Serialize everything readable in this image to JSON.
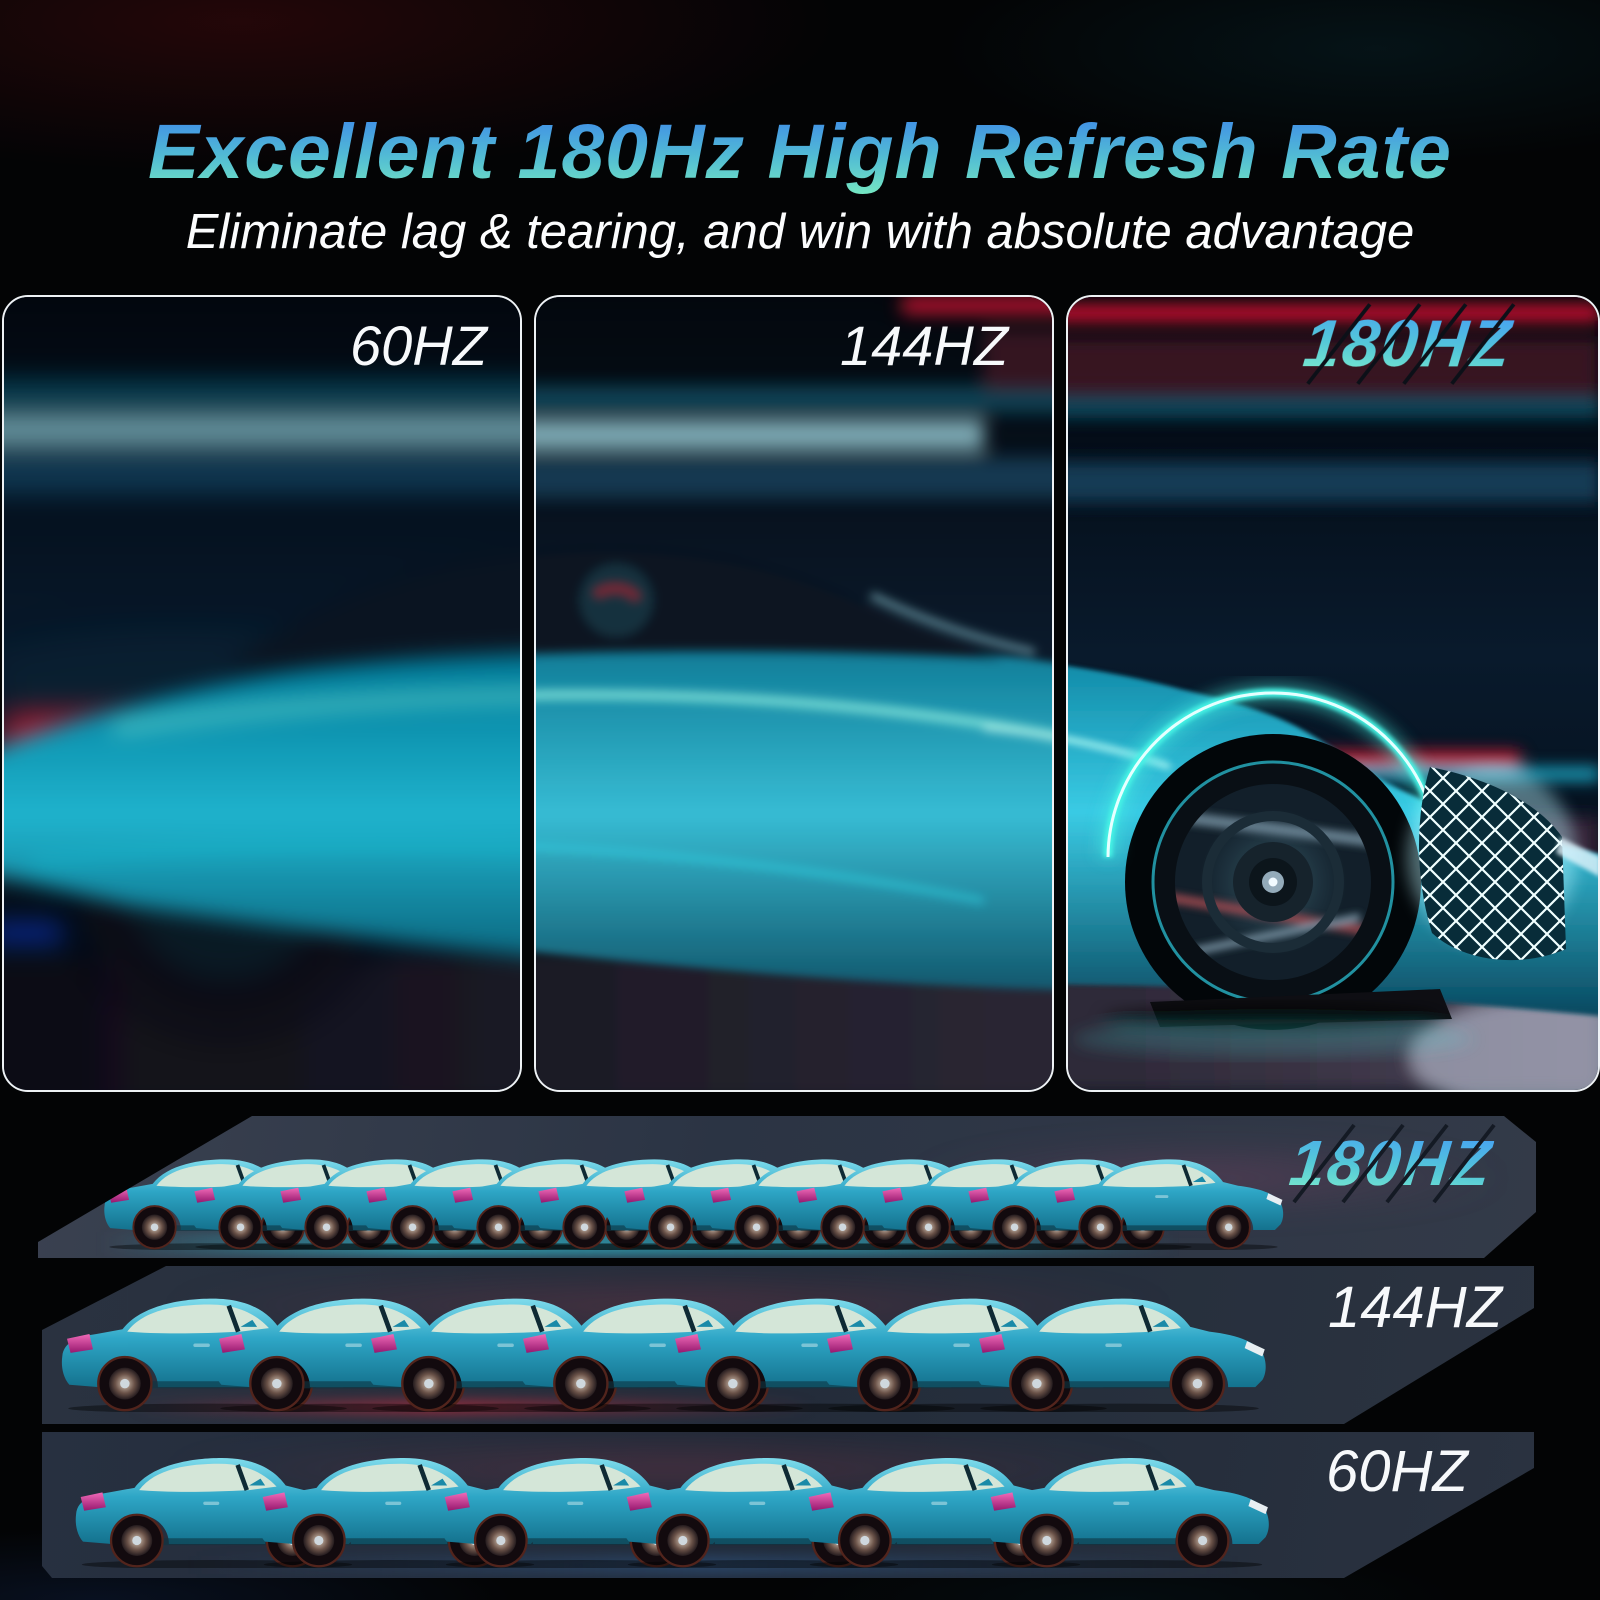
{
  "header": {
    "title": "Excellent 180Hz High Refresh Rate",
    "subtitle": "Eliminate lag & tearing, and win with absolute advantage"
  },
  "panels": [
    {
      "label": "60HZ",
      "blur": "heavy"
    },
    {
      "label": "144HZ",
      "blur": "moderate"
    },
    {
      "label": "180HZ",
      "blur": "none"
    }
  ],
  "comparison_rows": [
    {
      "label": "180HZ",
      "car_count": 12
    },
    {
      "label": "144HZ",
      "car_count": 7
    },
    {
      "label": "60HZ",
      "car_count": 6
    }
  ],
  "colors": {
    "title_gradient_top": "#3f8ce8",
    "title_gradient_bottom": "#74e6c3",
    "hz_glitch_gradient_top": "#47a2f2",
    "hz_glitch_gradient_bottom": "#80f0cc",
    "car_body_teal": "#2ea6c6",
    "taillight_magenta": "#d63aa0",
    "panel_border": "#eef2f5",
    "background": "#000000"
  }
}
